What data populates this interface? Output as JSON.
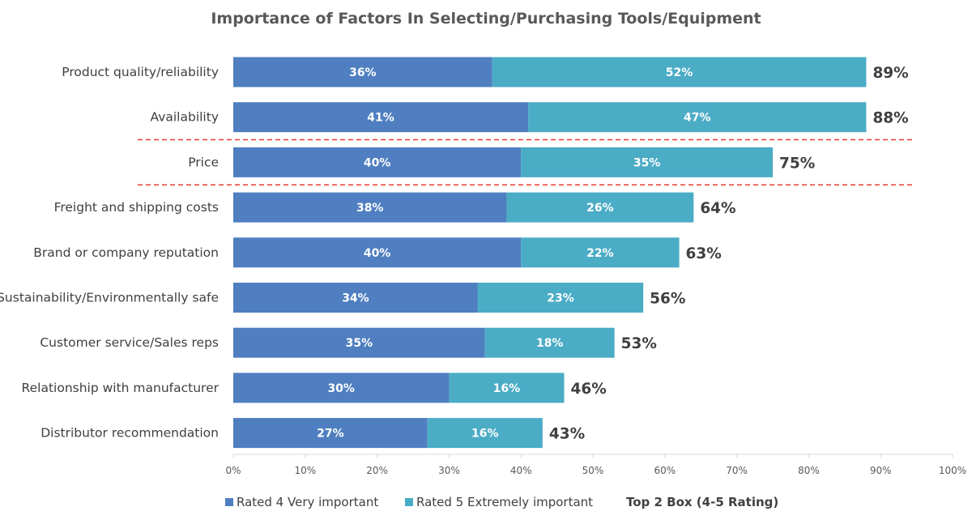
{
  "chart_data": {
    "type": "bar",
    "orientation": "horizontal",
    "stacked": true,
    "title": "Importance of Factors In Selecting/Purchasing Tools/Equipment",
    "categories": [
      "Product quality/reliability",
      "Availability",
      "Price",
      "Freight and shipping costs",
      "Brand or company reputation",
      "Sustainability/Environmentally safe",
      "Customer service/Sales reps",
      "Relationship with manufacturer",
      "Distributor recommendation"
    ],
    "series": [
      {
        "name": "Rated 4 Very important",
        "color": "#4f7fc0",
        "values": [
          36,
          41,
          40,
          38,
          40,
          34,
          35,
          30,
          27
        ]
      },
      {
        "name": "Rated 5 Extremely important",
        "color": "#4bacc6",
        "values": [
          52,
          47,
          35,
          26,
          22,
          23,
          18,
          16,
          16
        ]
      }
    ],
    "totals": {
      "name": "Top 2 Box (4-5 Rating)",
      "values": [
        89,
        88,
        75,
        64,
        63,
        56,
        53,
        46,
        43
      ]
    },
    "value_suffix": "%",
    "xlim": [
      0,
      100
    ],
    "xticks": [
      "0%",
      "10%",
      "20%",
      "30%",
      "40%",
      "50%",
      "60%",
      "70%",
      "80%",
      "90%",
      "100%"
    ],
    "xlabel": "",
    "ylabel": "",
    "grid": false,
    "legend_position": "bottom",
    "separator_color": "#e03c31"
  }
}
